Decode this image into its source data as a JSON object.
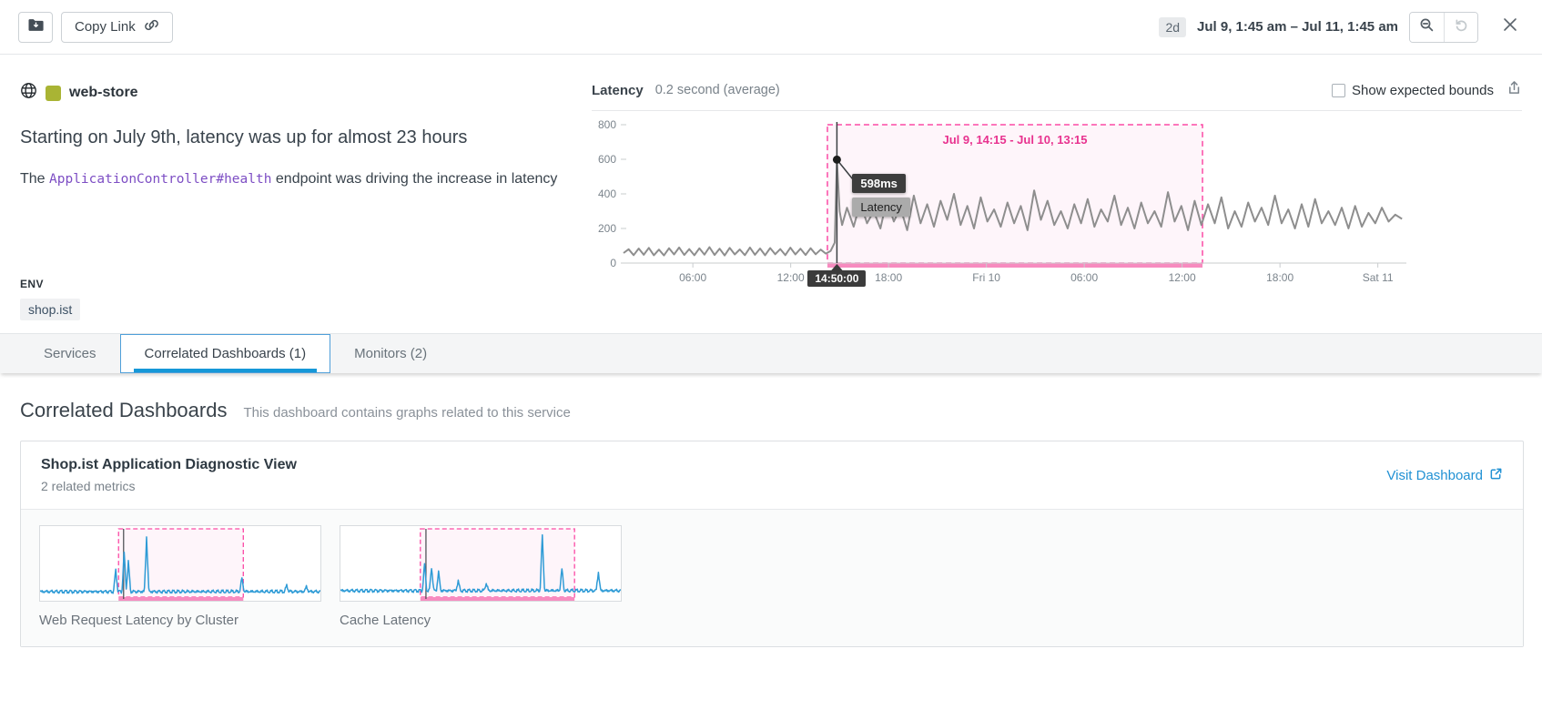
{
  "toolbar": {
    "copy_link_label": "Copy Link",
    "range_badge": "2d",
    "range_text": "Jul 9, 1:45 am – Jul 11, 1:45 am"
  },
  "summary": {
    "service_name": "web-store",
    "service_color": "#a9b434",
    "headline": "Starting on July 9th, latency was up for almost 23 hours",
    "description": {
      "prefix": "The ",
      "code": "ApplicationController#health",
      "suffix": " endpoint was driving the increase in latency"
    },
    "env_label": "ENV",
    "env_value": "shop.ist"
  },
  "chart": {
    "title": "Latency",
    "subtitle": "0.2 second (average)",
    "bounds_checkbox_label": "Show expected bounds",
    "tooltip": {
      "value": "598ms",
      "series": "Latency"
    },
    "marker_time": "14:50:00"
  },
  "chart_data": {
    "main": {
      "type": "line",
      "title": "Latency",
      "unit": "ms",
      "ylim": [
        0,
        800
      ],
      "yticks": [
        0,
        200,
        400,
        600,
        800
      ],
      "x_hours_range": [
        0,
        48
      ],
      "x_start_label": "Jul 9, 1:45 am",
      "xticks": [
        {
          "h": 4.25,
          "label": "06:00"
        },
        {
          "h": 10.25,
          "label": "12:00"
        },
        {
          "h": 16.25,
          "label": "18:00"
        },
        {
          "h": 22.25,
          "label": "Fri 10"
        },
        {
          "h": 28.25,
          "label": "06:00"
        },
        {
          "h": 34.25,
          "label": "12:00"
        },
        {
          "h": 40.25,
          "label": "18:00"
        },
        {
          "h": 46.25,
          "label": "Sat 11"
        }
      ],
      "annotation": {
        "start_h": 12.5,
        "end_h": 35.5,
        "label": "Jul 9, 14:15 - Jul 10, 13:15"
      },
      "marker": {
        "h": 13.083,
        "value": 598,
        "label": "14:50:00"
      },
      "series": [
        {
          "name": "Latency",
          "color": "#8e8e8e",
          "segments": [
            {
              "start_h": 0,
              "step_h": 0.31,
              "values": [
                58,
                80,
                46,
                84,
                48,
                88,
                45,
                78,
                44,
                86,
                50,
                90,
                47,
                81,
                45,
                85,
                49,
                92,
                47,
                83,
                44,
                88,
                50,
                79,
                46,
                90,
                48,
                84,
                45,
                87,
                51,
                81,
                46,
                89,
                50,
                83,
                47,
                86,
                51,
                78,
                55
              ]
            },
            {
              "points": [
                [
                  12.7,
                  70
                ],
                [
                  12.95,
                  118
                ],
                [
                  13.083,
                  598
                ],
                [
                  13.25,
                  300
                ],
                [
                  13.4,
                  220
                ]
              ]
            },
            {
              "start_h": 13.7,
              "step_h": 0.41,
              "values": [
                320,
                210,
                350,
                230,
                300,
                200,
                370,
                240,
                320,
                190,
                390,
                230,
                340,
                210,
                360,
                250,
                400,
                220,
                330,
                200,
                380,
                240,
                310,
                210,
                350,
                230,
                330,
                190,
                420,
                250,
                360,
                220,
                300,
                200,
                340,
                230,
                370,
                210,
                310,
                240,
                390,
                220,
                320,
                200,
                350,
                230,
                300,
                210,
                410,
                240,
                330,
                190,
                360,
                220,
                340,
                230,
                380,
                200,
                300,
                210,
                350,
                240,
                320,
                220,
                390,
                230,
                310,
                200,
                340,
                210,
                370,
                230,
                300,
                220,
                320,
                200,
                330,
                210,
                290,
                230,
                320,
                240,
                280,
                255
              ]
            }
          ]
        }
      ]
    },
    "thumbnails": [
      {
        "title": "Web Request Latency by Cluster",
        "type": "line",
        "color": "#2e9bd6",
        "baseline_frac": 0.06,
        "annotation": {
          "start_frac": 0.28,
          "end_frac": 0.725
        },
        "marker_frac": 0.298,
        "spikes": [
          [
            0.27,
            0.35
          ],
          [
            0.3,
            0.62
          ],
          [
            0.315,
            0.48
          ],
          [
            0.38,
            0.88
          ],
          [
            0.72,
            0.22
          ],
          [
            0.88,
            0.1
          ],
          [
            0.95,
            0.08
          ]
        ]
      },
      {
        "title": "Cache Latency",
        "type": "line",
        "color": "#2e9bd6",
        "baseline_frac": 0.075,
        "annotation": {
          "start_frac": 0.285,
          "end_frac": 0.835
        },
        "marker_frac": 0.305,
        "spikes": [
          [
            0.3,
            0.42
          ],
          [
            0.325,
            0.38
          ],
          [
            0.35,
            0.3
          ],
          [
            0.42,
            0.16
          ],
          [
            0.52,
            0.12
          ],
          [
            0.72,
            0.9
          ],
          [
            0.79,
            0.35
          ],
          [
            0.92,
            0.3
          ]
        ]
      }
    ]
  },
  "tabs": [
    {
      "label": "Services",
      "active": false
    },
    {
      "label": "Correlated Dashboards (1)",
      "active": true
    },
    {
      "label": "Monitors (2)",
      "active": false
    }
  ],
  "section": {
    "title": "Correlated Dashboards",
    "subtitle": "This dashboard contains graphs related to this service"
  },
  "card": {
    "title": "Shop.ist Application Diagnostic View",
    "subtitle": "2 related metrics",
    "link_label": "Visit Dashboard"
  },
  "colors": {
    "accent_blue": "#2191d4",
    "tab_underline": "#1698d8",
    "annotation_pink": "#e8328f",
    "annotation_border": "#fb4aa5",
    "annotation_bar": "#f78bbf",
    "series_gray": "#8e8e8e",
    "thumb_blue": "#2e9bd6"
  },
  "icons": {
    "toolbar_folder": "folder-move",
    "copy_link": "chain-link",
    "zoom_out": "magnifier-minus",
    "reset_zoom": "undo",
    "close": "x",
    "service": "globe",
    "export": "share-upload",
    "visit_dashboard": "external-link"
  }
}
